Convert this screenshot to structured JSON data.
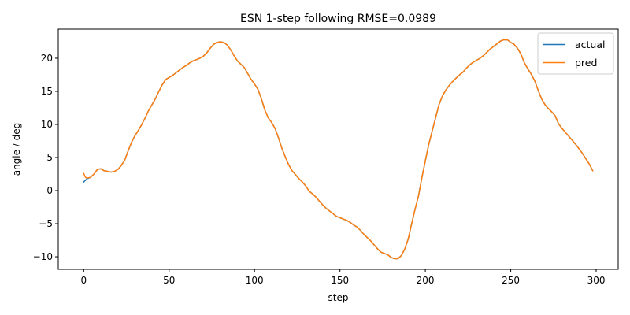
{
  "chart_data": {
    "type": "line",
    "title": "ESN 1-step following RMSE=0.0989",
    "xlabel": "step",
    "ylabel": "angle / deg",
    "xlim": [
      -14.9,
      312.9
    ],
    "ylim": [
      -11.9,
      24.4
    ],
    "xticks": [
      0,
      50,
      100,
      150,
      200,
      250,
      300
    ],
    "yticks": [
      -10,
      -5,
      0,
      5,
      10,
      15,
      20
    ],
    "xtick_labels": [
      "0",
      "50",
      "100",
      "150",
      "200",
      "250",
      "300"
    ],
    "ytick_labels": [
      "−10",
      "−5",
      "0",
      "5",
      "10",
      "15",
      "20"
    ],
    "grid": false,
    "legend_position": "top-right",
    "series": [
      {
        "name": "actual",
        "color": "#1f77b4",
        "points": [
          [
            0,
            1.3
          ],
          [
            2,
            1.8
          ],
          [
            4,
            2.0
          ],
          [
            6,
            2.5
          ],
          [
            8,
            3.2
          ],
          [
            10,
            3.3
          ],
          [
            12,
            3.0
          ],
          [
            14,
            2.9
          ],
          [
            16,
            2.8
          ],
          [
            18,
            2.9
          ],
          [
            20,
            3.2
          ],
          [
            22,
            3.8
          ],
          [
            24,
            4.6
          ],
          [
            26,
            6.0
          ],
          [
            28,
            7.3
          ],
          [
            30,
            8.3
          ],
          [
            32,
            9.1
          ],
          [
            34,
            10.0
          ],
          [
            36,
            11.0
          ],
          [
            38,
            12.1
          ],
          [
            40,
            13.0
          ],
          [
            42,
            13.9
          ],
          [
            44,
            15.0
          ],
          [
            46,
            16.0
          ],
          [
            48,
            16.8
          ],
          [
            50,
            17.1
          ],
          [
            52,
            17.4
          ],
          [
            54,
            17.8
          ],
          [
            56,
            18.2
          ],
          [
            58,
            18.6
          ],
          [
            60,
            18.9
          ],
          [
            62,
            19.3
          ],
          [
            64,
            19.6
          ],
          [
            66,
            19.8
          ],
          [
            68,
            20.0
          ],
          [
            70,
            20.3
          ],
          [
            72,
            20.8
          ],
          [
            74,
            21.5
          ],
          [
            76,
            22.1
          ],
          [
            78,
            22.4
          ],
          [
            80,
            22.5
          ],
          [
            82,
            22.4
          ],
          [
            84,
            22.0
          ],
          [
            86,
            21.3
          ],
          [
            88,
            20.4
          ],
          [
            90,
            19.6
          ],
          [
            92,
            19.1
          ],
          [
            94,
            18.6
          ],
          [
            96,
            17.7
          ],
          [
            98,
            16.8
          ],
          [
            100,
            16.1
          ],
          [
            102,
            15.3
          ],
          [
            104,
            13.9
          ],
          [
            106,
            12.2
          ],
          [
            108,
            11.0
          ],
          [
            110,
            10.3
          ],
          [
            112,
            9.4
          ],
          [
            114,
            8.0
          ],
          [
            116,
            6.4
          ],
          [
            118,
            5.1
          ],
          [
            120,
            3.9
          ],
          [
            122,
            3.0
          ],
          [
            124,
            2.4
          ],
          [
            126,
            1.8
          ],
          [
            128,
            1.3
          ],
          [
            130,
            0.7
          ],
          [
            132,
            -0.1
          ],
          [
            134,
            -0.5
          ],
          [
            136,
            -1.0
          ],
          [
            138,
            -1.6
          ],
          [
            140,
            -2.2
          ],
          [
            142,
            -2.7
          ],
          [
            144,
            -3.1
          ],
          [
            146,
            -3.5
          ],
          [
            148,
            -3.9
          ],
          [
            150,
            -4.1
          ],
          [
            152,
            -4.3
          ],
          [
            154,
            -4.5
          ],
          [
            156,
            -4.8
          ],
          [
            158,
            -5.2
          ],
          [
            160,
            -5.5
          ],
          [
            162,
            -6.0
          ],
          [
            164,
            -6.6
          ],
          [
            166,
            -7.1
          ],
          [
            168,
            -7.6
          ],
          [
            170,
            -8.2
          ],
          [
            172,
            -8.8
          ],
          [
            174,
            -9.3
          ],
          [
            176,
            -9.5
          ],
          [
            178,
            -9.7
          ],
          [
            180,
            -10.1
          ],
          [
            182,
            -10.3
          ],
          [
            184,
            -10.3
          ],
          [
            186,
            -9.8
          ],
          [
            188,
            -8.8
          ],
          [
            190,
            -7.3
          ],
          [
            192,
            -5.0
          ],
          [
            194,
            -2.8
          ],
          [
            196,
            -0.8
          ],
          [
            198,
            2.0
          ],
          [
            200,
            4.5
          ],
          [
            202,
            7.0
          ],
          [
            204,
            9.0
          ],
          [
            206,
            11.0
          ],
          [
            208,
            13.0
          ],
          [
            210,
            14.3
          ],
          [
            212,
            15.2
          ],
          [
            214,
            15.9
          ],
          [
            216,
            16.5
          ],
          [
            218,
            17.0
          ],
          [
            220,
            17.5
          ],
          [
            222,
            17.9
          ],
          [
            224,
            18.5
          ],
          [
            226,
            19.0
          ],
          [
            228,
            19.4
          ],
          [
            230,
            19.7
          ],
          [
            232,
            20.0
          ],
          [
            234,
            20.4
          ],
          [
            236,
            20.9
          ],
          [
            238,
            21.4
          ],
          [
            240,
            21.8
          ],
          [
            242,
            22.2
          ],
          [
            244,
            22.6
          ],
          [
            246,
            22.8
          ],
          [
            248,
            22.8
          ],
          [
            250,
            22.4
          ],
          [
            252,
            22.1
          ],
          [
            254,
            21.5
          ],
          [
            256,
            20.6
          ],
          [
            258,
            19.3
          ],
          [
            260,
            18.4
          ],
          [
            262,
            17.6
          ],
          [
            264,
            16.6
          ],
          [
            266,
            15.2
          ],
          [
            268,
            13.9
          ],
          [
            270,
            13.0
          ],
          [
            272,
            12.4
          ],
          [
            274,
            11.9
          ],
          [
            276,
            11.3
          ],
          [
            278,
            10.1
          ],
          [
            280,
            9.4
          ],
          [
            282,
            8.8
          ],
          [
            284,
            8.2
          ],
          [
            286,
            7.6
          ],
          [
            288,
            7.0
          ],
          [
            290,
            6.3
          ],
          [
            292,
            5.6
          ],
          [
            294,
            4.8
          ],
          [
            296,
            4.0
          ],
          [
            298,
            3.0
          ]
        ]
      },
      {
        "name": "pred",
        "color": "#ff7f0e",
        "points": [
          [
            0,
            2.6
          ],
          [
            1,
            2.0
          ],
          [
            2,
            1.9
          ],
          [
            4,
            2.0
          ],
          [
            6,
            2.5
          ],
          [
            8,
            3.2
          ],
          [
            10,
            3.3
          ],
          [
            12,
            3.0
          ],
          [
            14,
            2.9
          ],
          [
            16,
            2.8
          ],
          [
            18,
            2.9
          ],
          [
            20,
            3.2
          ],
          [
            22,
            3.8
          ],
          [
            24,
            4.6
          ],
          [
            26,
            6.0
          ],
          [
            28,
            7.3
          ],
          [
            30,
            8.3
          ],
          [
            32,
            9.1
          ],
          [
            34,
            10.0
          ],
          [
            36,
            11.0
          ],
          [
            38,
            12.1
          ],
          [
            40,
            13.0
          ],
          [
            42,
            13.9
          ],
          [
            44,
            15.0
          ],
          [
            46,
            16.0
          ],
          [
            48,
            16.8
          ],
          [
            50,
            17.1
          ],
          [
            52,
            17.4
          ],
          [
            54,
            17.8
          ],
          [
            56,
            18.2
          ],
          [
            58,
            18.6
          ],
          [
            60,
            18.9
          ],
          [
            62,
            19.3
          ],
          [
            64,
            19.6
          ],
          [
            66,
            19.8
          ],
          [
            68,
            20.0
          ],
          [
            70,
            20.3
          ],
          [
            72,
            20.8
          ],
          [
            74,
            21.5
          ],
          [
            76,
            22.1
          ],
          [
            78,
            22.4
          ],
          [
            80,
            22.5
          ],
          [
            82,
            22.4
          ],
          [
            84,
            22.0
          ],
          [
            86,
            21.3
          ],
          [
            88,
            20.4
          ],
          [
            90,
            19.6
          ],
          [
            92,
            19.1
          ],
          [
            94,
            18.6
          ],
          [
            96,
            17.7
          ],
          [
            98,
            16.8
          ],
          [
            100,
            16.1
          ],
          [
            102,
            15.3
          ],
          [
            104,
            13.9
          ],
          [
            106,
            12.2
          ],
          [
            108,
            11.0
          ],
          [
            110,
            10.3
          ],
          [
            112,
            9.4
          ],
          [
            114,
            8.0
          ],
          [
            116,
            6.4
          ],
          [
            118,
            5.1
          ],
          [
            120,
            3.9
          ],
          [
            122,
            3.0
          ],
          [
            124,
            2.4
          ],
          [
            126,
            1.8
          ],
          [
            128,
            1.3
          ],
          [
            130,
            0.7
          ],
          [
            132,
            -0.1
          ],
          [
            134,
            -0.5
          ],
          [
            136,
            -1.0
          ],
          [
            138,
            -1.6
          ],
          [
            140,
            -2.2
          ],
          [
            142,
            -2.7
          ],
          [
            144,
            -3.1
          ],
          [
            146,
            -3.5
          ],
          [
            148,
            -3.9
          ],
          [
            150,
            -4.1
          ],
          [
            152,
            -4.3
          ],
          [
            154,
            -4.5
          ],
          [
            156,
            -4.8
          ],
          [
            158,
            -5.2
          ],
          [
            160,
            -5.5
          ],
          [
            162,
            -6.0
          ],
          [
            164,
            -6.6
          ],
          [
            166,
            -7.1
          ],
          [
            168,
            -7.6
          ],
          [
            170,
            -8.2
          ],
          [
            172,
            -8.8
          ],
          [
            174,
            -9.3
          ],
          [
            176,
            -9.5
          ],
          [
            178,
            -9.7
          ],
          [
            180,
            -10.1
          ],
          [
            182,
            -10.3
          ],
          [
            184,
            -10.3
          ],
          [
            186,
            -9.8
          ],
          [
            188,
            -8.8
          ],
          [
            190,
            -7.3
          ],
          [
            192,
            -5.0
          ],
          [
            194,
            -2.8
          ],
          [
            196,
            -0.8
          ],
          [
            198,
            2.0
          ],
          [
            200,
            4.5
          ],
          [
            202,
            7.0
          ],
          [
            204,
            9.0
          ],
          [
            206,
            11.0
          ],
          [
            208,
            13.0
          ],
          [
            210,
            14.3
          ],
          [
            212,
            15.2
          ],
          [
            214,
            15.9
          ],
          [
            216,
            16.5
          ],
          [
            218,
            17.0
          ],
          [
            220,
            17.5
          ],
          [
            222,
            17.9
          ],
          [
            224,
            18.5
          ],
          [
            226,
            19.0
          ],
          [
            228,
            19.4
          ],
          [
            230,
            19.7
          ],
          [
            232,
            20.0
          ],
          [
            234,
            20.4
          ],
          [
            236,
            20.9
          ],
          [
            238,
            21.4
          ],
          [
            240,
            21.8
          ],
          [
            242,
            22.2
          ],
          [
            244,
            22.6
          ],
          [
            246,
            22.8
          ],
          [
            248,
            22.8
          ],
          [
            250,
            22.4
          ],
          [
            252,
            22.1
          ],
          [
            254,
            21.5
          ],
          [
            256,
            20.6
          ],
          [
            258,
            19.3
          ],
          [
            260,
            18.4
          ],
          [
            262,
            17.6
          ],
          [
            264,
            16.6
          ],
          [
            266,
            15.2
          ],
          [
            268,
            13.9
          ],
          [
            270,
            13.0
          ],
          [
            272,
            12.4
          ],
          [
            274,
            11.9
          ],
          [
            276,
            11.3
          ],
          [
            278,
            10.1
          ],
          [
            280,
            9.4
          ],
          [
            282,
            8.8
          ],
          [
            284,
            8.2
          ],
          [
            286,
            7.6
          ],
          [
            288,
            7.0
          ],
          [
            290,
            6.3
          ],
          [
            292,
            5.6
          ],
          [
            294,
            4.8
          ],
          [
            296,
            4.0
          ],
          [
            298,
            3.0
          ]
        ]
      }
    ]
  }
}
